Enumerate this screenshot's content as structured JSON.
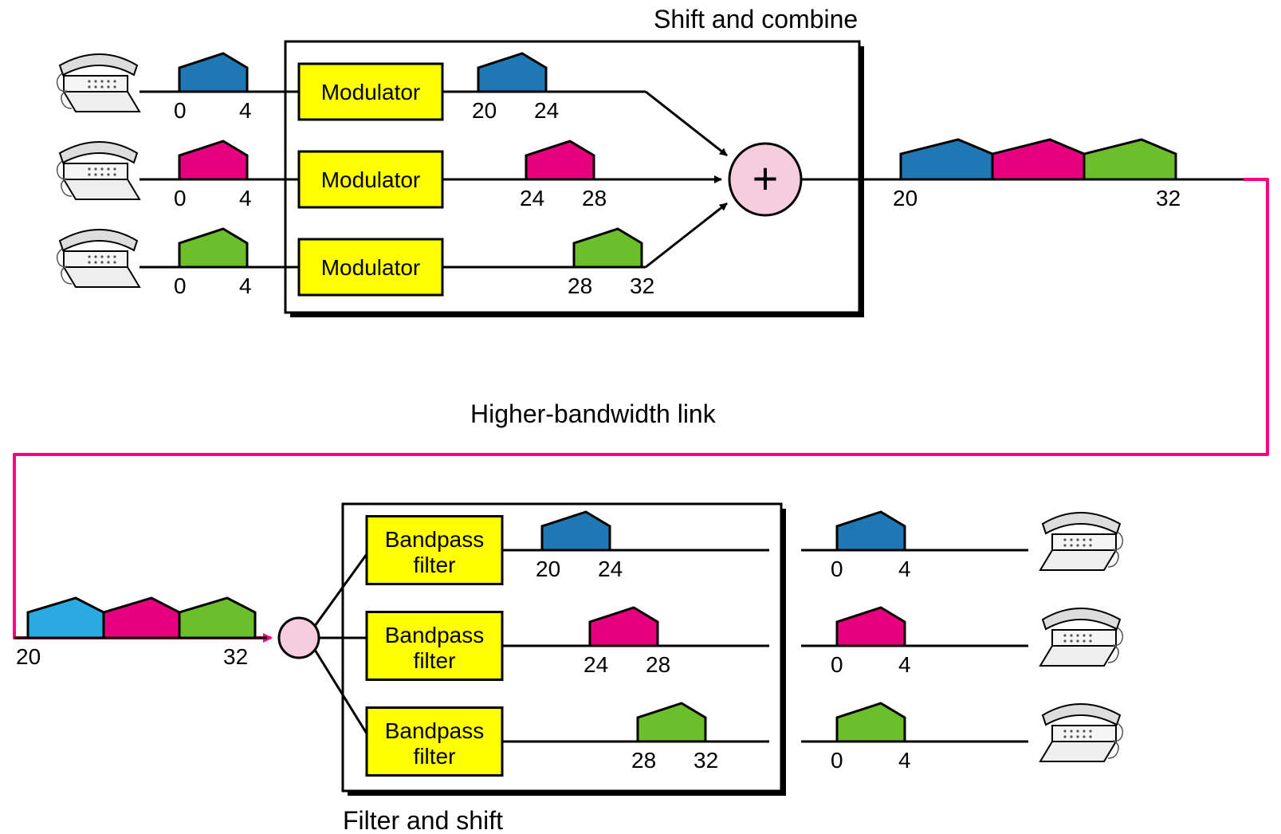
{
  "diagram_type": "infographic",
  "background_color": "#ffffff",
  "stroke_color": "#000000",
  "stroke_width": 3,
  "box_fill": "#ffffff",
  "proc_box_fill": "#ffff00",
  "summer_fill": "#f8ccdf",
  "link_color": "#ff0080",
  "label_fontsize": 28,
  "title_fontsize": 32,
  "colors": {
    "blue": "#1f77b4",
    "pink": "#e6007e",
    "green": "#6cbf2a",
    "blue2": "#29abe2"
  },
  "upper_title": "Shift and combine",
  "lower_title": "Filter and shift",
  "link_label": "Higher-bandwidth link",
  "modulator_label": "Modulator",
  "filter_label_l1": "Bandpass",
  "filter_label_l2": "filter",
  "summer_symbol": "+",
  "channels": [
    {
      "color": "#1f77b4",
      "src_lo": "0",
      "src_hi": "4",
      "mod_lo": "20",
      "mod_hi": "24"
    },
    {
      "color": "#e6007e",
      "src_lo": "0",
      "src_hi": "4",
      "mod_lo": "24",
      "mod_hi": "28"
    },
    {
      "color": "#6cbf2a",
      "src_lo": "0",
      "src_hi": "4",
      "mod_lo": "28",
      "mod_hi": "32"
    }
  ],
  "combined_lo": "20",
  "combined_hi": "32",
  "lower_combined_color_left": "#29abe2",
  "phone_icon_color": "#777777"
}
